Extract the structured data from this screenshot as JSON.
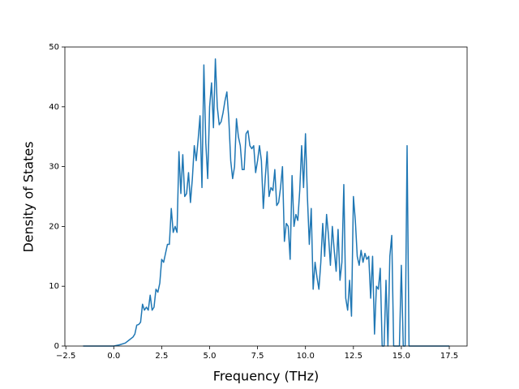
{
  "chart_data": {
    "type": "line",
    "xlabel": "Frequency (THz)",
    "ylabel": "Density of States",
    "x": [
      -1.6,
      -1.0,
      -0.5,
      0.0,
      0.3,
      0.6,
      0.8,
      1.0,
      1.1,
      1.2,
      1.3,
      1.4,
      1.5,
      1.6,
      1.7,
      1.8,
      1.9,
      2.0,
      2.1,
      2.2,
      2.3,
      2.4,
      2.5,
      2.6,
      2.7,
      2.8,
      2.9,
      3.0,
      3.1,
      3.2,
      3.3,
      3.4,
      3.5,
      3.6,
      3.7,
      3.8,
      3.9,
      4.0,
      4.1,
      4.2,
      4.3,
      4.4,
      4.5,
      4.6,
      4.7,
      4.8,
      4.9,
      5.0,
      5.1,
      5.2,
      5.3,
      5.4,
      5.5,
      5.6,
      5.7,
      5.8,
      5.9,
      6.0,
      6.1,
      6.2,
      6.3,
      6.4,
      6.5,
      6.6,
      6.7,
      6.8,
      6.9,
      7.0,
      7.1,
      7.2,
      7.3,
      7.4,
      7.5,
      7.6,
      7.7,
      7.8,
      7.9,
      8.0,
      8.1,
      8.2,
      8.3,
      8.4,
      8.5,
      8.6,
      8.7,
      8.8,
      8.9,
      9.0,
      9.1,
      9.2,
      9.3,
      9.4,
      9.5,
      9.6,
      9.7,
      9.8,
      9.9,
      10.0,
      10.1,
      10.2,
      10.3,
      10.4,
      10.5,
      10.6,
      10.7,
      10.8,
      10.9,
      11.0,
      11.1,
      11.2,
      11.3,
      11.4,
      11.5,
      11.6,
      11.7,
      11.8,
      11.9,
      12.0,
      12.1,
      12.2,
      12.3,
      12.4,
      12.5,
      12.6,
      12.7,
      12.8,
      12.9,
      13.0,
      13.1,
      13.2,
      13.3,
      13.4,
      13.5,
      13.6,
      13.7,
      13.8,
      13.9,
      14.0,
      14.1,
      14.2,
      14.3,
      14.4,
      14.5,
      14.6,
      14.7,
      14.8,
      14.9,
      15.0,
      15.1,
      15.2,
      15.3,
      15.4,
      15.5,
      17.5
    ],
    "values": [
      0,
      0,
      0,
      0,
      0.2,
      0.5,
      1,
      1.5,
      2,
      3.5,
      3.6,
      4,
      7,
      6,
      6.5,
      6,
      8.5,
      6,
      6.5,
      9.5,
      9,
      10.5,
      14.5,
      14,
      15.5,
      17,
      17,
      23,
      19,
      20,
      19,
      32.5,
      25.5,
      32,
      25,
      25.5,
      29,
      24,
      28,
      33.5,
      31,
      34.5,
      38.5,
      26.5,
      47,
      34,
      28,
      40,
      44,
      36.5,
      48,
      40,
      37,
      37.5,
      39,
      41,
      42.5,
      38,
      31,
      28,
      30,
      38,
      35,
      33.5,
      29.5,
      29.5,
      35.5,
      36,
      33.5,
      33,
      33.5,
      29,
      31,
      33.5,
      31,
      23,
      28,
      32.5,
      25,
      26.5,
      26,
      29.5,
      23.5,
      24,
      26.5,
      30,
      17.5,
      20.5,
      20,
      14.5,
      28.5,
      20,
      22,
      21,
      26,
      33.5,
      26.5,
      35.5,
      25,
      17,
      23,
      9.5,
      14,
      11.5,
      9.5,
      14,
      20.5,
      15,
      22,
      18.5,
      13.5,
      20,
      16,
      12.5,
      19.5,
      11,
      14,
      27,
      8,
      6,
      11,
      5,
      25,
      21,
      15,
      13.5,
      16,
      14,
      15.5,
      14.5,
      15,
      8,
      15,
      2,
      10,
      9.5,
      13,
      0,
      0,
      11,
      0,
      15,
      18.5,
      0,
      0,
      0,
      0,
      13.5,
      0,
      0,
      33.5,
      0,
      0,
      0
    ],
    "color": "#1f77b4",
    "xlim": [
      -2.55,
      18.43
    ],
    "xticks": [
      {
        "value": -2.5,
        "label": "−2.5"
      },
      {
        "value": 0,
        "label": "0.0"
      },
      2.5,
      {
        "value": 5,
        "label": "5.0"
      },
      7.5,
      {
        "value": 10,
        "label": "10.0"
      },
      12.5,
      {
        "value": 15,
        "label": "15.0"
      },
      17.5
    ],
    "ylim": [
      0,
      50
    ],
    "yticks": [
      0,
      10,
      20,
      30,
      40,
      50
    ]
  }
}
